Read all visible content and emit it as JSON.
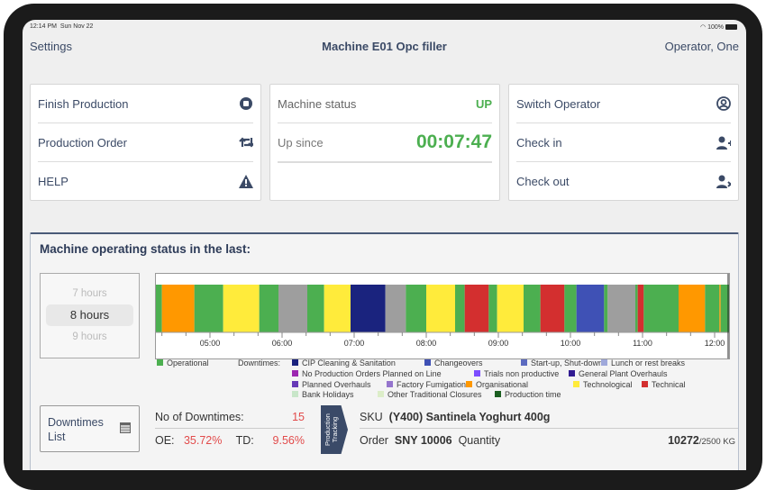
{
  "status_bar": {
    "time": "12:14 PM",
    "date": "Sun Nov 22",
    "battery": "100%"
  },
  "nav": {
    "left": "Settings",
    "title": "Machine E01 Opc filler",
    "right": "Operator, One"
  },
  "actions_card": [
    {
      "label": "Finish Production",
      "icon": "stop-circle-icon"
    },
    {
      "label": "Production Order",
      "icon": "retweet-icon"
    },
    {
      "label": "HELP",
      "icon": "warning-icon"
    }
  ],
  "machine_card": {
    "status_label": "Machine status",
    "status_value": "UP",
    "up_since_label": "Up since",
    "up_since_value": "00:07:47",
    "accent": "#4caf50"
  },
  "operator_card": [
    {
      "label": "Switch Operator",
      "icon": "user-circle-icon"
    },
    {
      "label": "Check in",
      "icon": "user-plus-icon"
    },
    {
      "label": "Check out",
      "icon": "user-times-icon"
    }
  ],
  "panel": {
    "title": "Machine operating status in the last:",
    "hours_picker": {
      "options": [
        "7 hours",
        "8 hours",
        "9 hours"
      ],
      "selected": "8 hours"
    },
    "downtimes_list_label": "Downtimes List",
    "no_downtimes_label": "No of Downtimes:",
    "no_downtimes_value": "15",
    "oe_label": "OE:",
    "oe_value": "35.72%",
    "td_label": "TD:",
    "td_value": "9.56%"
  },
  "production": {
    "tag": "Production Tracking",
    "sku_label": "SKU",
    "sku_value": "(Y400) Santinela Yoghurt 400g",
    "order_label": "Order",
    "order_value": "SNY 10006",
    "quantity_label": "Quantity",
    "quantity_value": "10272",
    "quantity_target": "/2500 KG"
  },
  "chart_data": {
    "type": "timeline",
    "x_range": [
      "04:15",
      "12:12"
    ],
    "ticks": [
      "05:00",
      "06:00",
      "07:00",
      "08:00",
      "09:00",
      "10:00",
      "11:00",
      "12:00"
    ],
    "legend": {
      "operational": {
        "label": "Operational",
        "color": "#4caf50"
      },
      "downtimes_label": "Downtimes:",
      "downtimes": [
        {
          "label": "CIP Cleaning & Sanitation",
          "color": "#1a237e"
        },
        {
          "label": "Changeovers",
          "color": "#3f51b5"
        },
        {
          "label": "Start-up, Shut-down",
          "color": "#5c6bc0"
        },
        {
          "label": "Lunch or rest breaks",
          "color": "#9fa8da"
        },
        {
          "label": "No Production Orders Planned on Line",
          "color": "#9c27b0"
        },
        {
          "label": "Trials non productive",
          "color": "#7c4dff"
        },
        {
          "label": "General Plant Overhauls",
          "color": "#311b92"
        },
        {
          "label": "Planned Overhauls",
          "color": "#673ab7"
        },
        {
          "label": "Factory Fumigation",
          "color": "#9575cd"
        },
        {
          "label": "Organisational",
          "color": "#ff9800"
        },
        {
          "label": "Technological",
          "color": "#ffeb3b"
        },
        {
          "label": "Technical",
          "color": "#d32f2f"
        },
        {
          "label": "Bank Holidays",
          "color": "#c8e6c9"
        },
        {
          "label": "Other Traditional Closures",
          "color": "#dcedc8"
        },
        {
          "label": "Production time",
          "color": "#1b5e20"
        }
      ]
    },
    "segments": [
      {
        "start": "04:15",
        "end": "04:20",
        "color": "#4caf50"
      },
      {
        "start": "04:20",
        "end": "04:47",
        "color": "#ff9800"
      },
      {
        "start": "04:47",
        "end": "05:11",
        "color": "#4caf50"
      },
      {
        "start": "05:11",
        "end": "05:41",
        "color": "#ffeb3b"
      },
      {
        "start": "05:41",
        "end": "05:57",
        "color": "#4caf50"
      },
      {
        "start": "05:57",
        "end": "06:21",
        "color": "#9e9e9e"
      },
      {
        "start": "06:21",
        "end": "06:35",
        "color": "#4caf50"
      },
      {
        "start": "06:35",
        "end": "06:57",
        "color": "#ffeb3b"
      },
      {
        "start": "06:57",
        "end": "07:26",
        "color": "#1a237e"
      },
      {
        "start": "07:26",
        "end": "07:43",
        "color": "#9e9e9e"
      },
      {
        "start": "07:43",
        "end": "08:00",
        "color": "#4caf50"
      },
      {
        "start": "08:00",
        "end": "08:24",
        "color": "#ffeb3b"
      },
      {
        "start": "08:24",
        "end": "08:32",
        "color": "#4caf50"
      },
      {
        "start": "08:32",
        "end": "08:52",
        "color": "#d32f2f"
      },
      {
        "start": "08:52",
        "end": "08:59",
        "color": "#4caf50"
      },
      {
        "start": "08:59",
        "end": "09:21",
        "color": "#ffeb3b"
      },
      {
        "start": "09:21",
        "end": "09:35",
        "color": "#4caf50"
      },
      {
        "start": "09:35",
        "end": "09:55",
        "color": "#d32f2f"
      },
      {
        "start": "09:55",
        "end": "10:05",
        "color": "#4caf50"
      },
      {
        "start": "10:05",
        "end": "10:28",
        "color": "#3f51b5"
      },
      {
        "start": "10:28",
        "end": "10:31",
        "color": "#4caf50"
      },
      {
        "start": "10:31",
        "end": "10:54",
        "color": "#9e9e9e"
      },
      {
        "start": "10:54",
        "end": "10:56",
        "color": "#4caf50"
      },
      {
        "start": "10:56",
        "end": "11:01",
        "color": "#d32f2f"
      },
      {
        "start": "11:01",
        "end": "11:30",
        "color": "#4caf50"
      },
      {
        "start": "11:30",
        "end": "11:52",
        "color": "#ff9800"
      },
      {
        "start": "11:52",
        "end": "12:04",
        "color": "#4caf50"
      },
      {
        "start": "12:04",
        "end": "12:05",
        "color": "#ff9800"
      },
      {
        "start": "12:05",
        "end": "12:12",
        "color": "#4caf50"
      }
    ]
  }
}
